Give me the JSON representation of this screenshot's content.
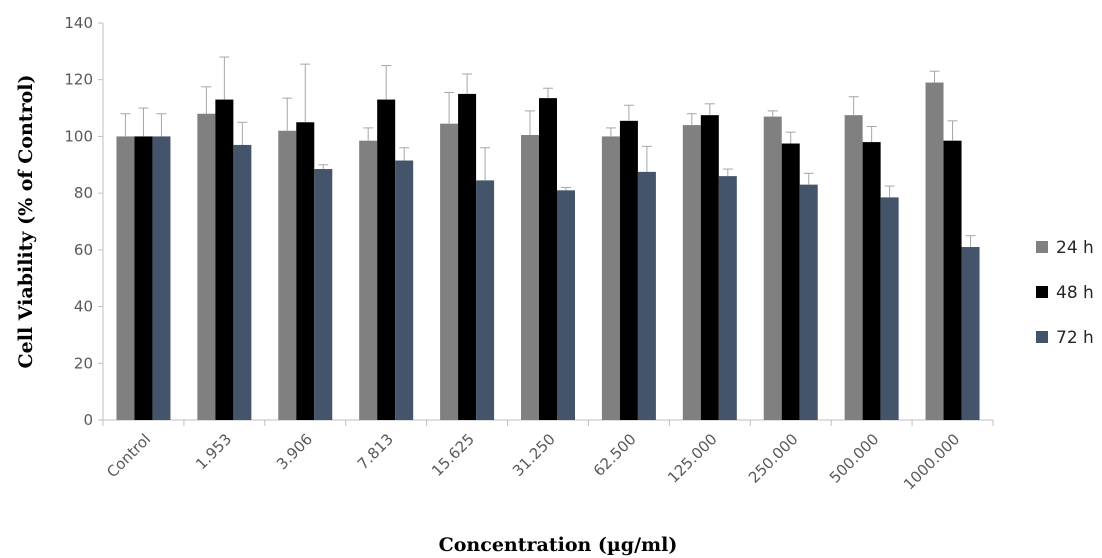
{
  "chart_data": {
    "type": "bar",
    "title": "",
    "xlabel": "Concentration (µg/ml)",
    "ylabel": "Cell Viability (% of Control)",
    "ylim": [
      0,
      140
    ],
    "yticks": [
      "0",
      "20",
      "40",
      "60",
      "80",
      "100",
      "120",
      "140"
    ],
    "categories": [
      "Control",
      "1.953",
      "3.906",
      "7.813",
      "15.625",
      "31.250",
      "62.500",
      "125.000",
      "250.000",
      "500.000",
      "1000.000"
    ],
    "series": [
      {
        "name": "24 h",
        "color": "#808080",
        "values": [
          100,
          108,
          102,
          98.5,
          104.5,
          100.5,
          100,
          104,
          107,
          107.5,
          119
        ],
        "errors": [
          8,
          9.5,
          11.5,
          4.5,
          11,
          8.5,
          3,
          4,
          2,
          6.5,
          4
        ]
      },
      {
        "name": "48 h",
        "color": "#000000",
        "values": [
          100,
          113,
          105,
          113,
          115,
          113.5,
          105.5,
          107.5,
          97.5,
          98,
          98.5
        ],
        "errors": [
          10,
          15,
          20.5,
          12,
          7,
          3.5,
          5.5,
          4,
          4,
          5.5,
          7
        ]
      },
      {
        "name": "72 h",
        "color": "#44546a",
        "values": [
          100,
          97,
          88.5,
          91.5,
          84.5,
          81,
          87.5,
          86,
          83,
          78.5,
          61
        ],
        "errors": [
          8,
          8,
          1.5,
          4.5,
          11.5,
          1,
          9,
          2.5,
          4,
          4,
          4
        ]
      }
    ],
    "legend": "right",
    "grid": false
  }
}
